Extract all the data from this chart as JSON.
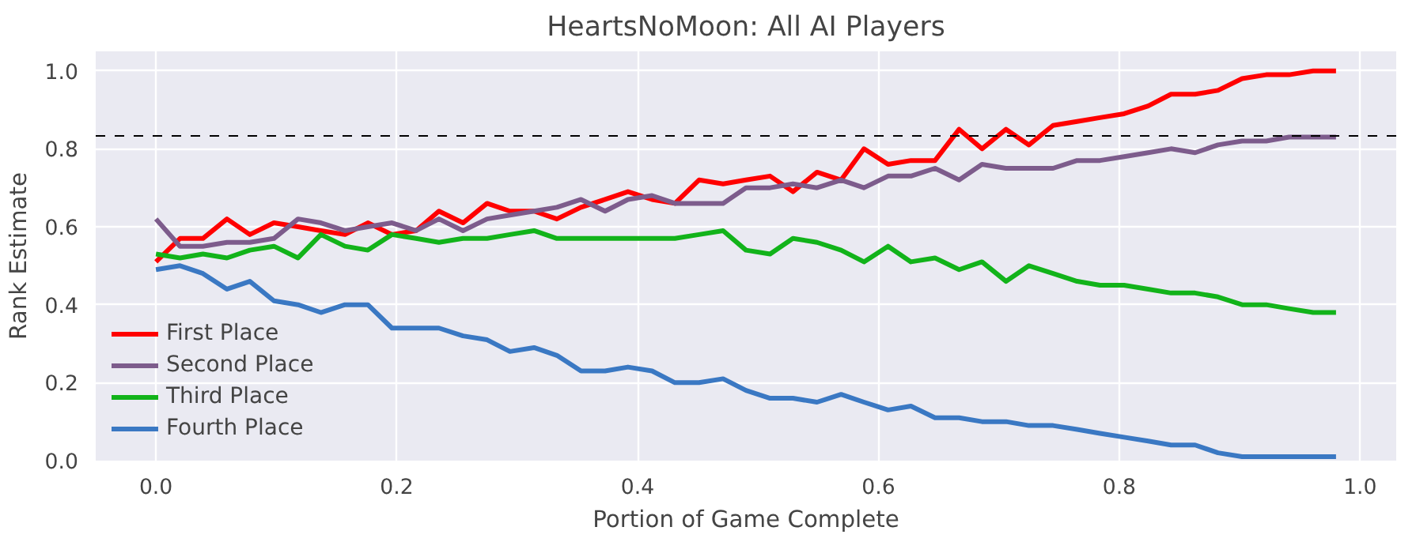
{
  "chart_data": {
    "type": "line",
    "title": "HeartsNoMoon: All AI Players",
    "xlabel": "Portion of Game Complete",
    "ylabel": "Rank Estimate",
    "x": [
      0.0,
      0.02,
      0.039,
      0.059,
      0.078,
      0.098,
      0.118,
      0.137,
      0.157,
      0.176,
      0.196,
      0.216,
      0.235,
      0.255,
      0.275,
      0.294,
      0.314,
      0.333,
      0.353,
      0.373,
      0.392,
      0.412,
      0.431,
      0.451,
      0.471,
      0.49,
      0.51,
      0.529,
      0.549,
      0.569,
      0.588,
      0.608,
      0.627,
      0.647,
      0.667,
      0.686,
      0.706,
      0.725,
      0.745,
      0.765,
      0.784,
      0.804,
      0.824,
      0.843,
      0.863,
      0.882,
      0.902,
      0.922,
      0.941,
      0.961,
      0.98
    ],
    "series": [
      {
        "name": "First Place",
        "color": "#ff0000",
        "values": [
          0.51,
          0.57,
          0.57,
          0.62,
          0.58,
          0.61,
          0.6,
          0.59,
          0.58,
          0.61,
          0.58,
          0.59,
          0.64,
          0.61,
          0.66,
          0.64,
          0.64,
          0.62,
          0.65,
          0.67,
          0.69,
          0.67,
          0.66,
          0.72,
          0.71,
          0.72,
          0.73,
          0.69,
          0.74,
          0.72,
          0.8,
          0.76,
          0.77,
          0.77,
          0.85,
          0.8,
          0.85,
          0.81,
          0.86,
          0.87,
          0.88,
          0.89,
          0.91,
          0.94,
          0.94,
          0.95,
          0.98,
          0.99,
          0.99,
          1.0,
          1.0
        ]
      },
      {
        "name": "Second Place",
        "color": "#7d5c8c",
        "values": [
          0.62,
          0.55,
          0.55,
          0.56,
          0.56,
          0.57,
          0.62,
          0.61,
          0.59,
          0.6,
          0.61,
          0.59,
          0.62,
          0.59,
          0.62,
          0.63,
          0.64,
          0.65,
          0.67,
          0.64,
          0.67,
          0.68,
          0.66,
          0.66,
          0.66,
          0.7,
          0.7,
          0.71,
          0.7,
          0.72,
          0.7,
          0.73,
          0.73,
          0.75,
          0.72,
          0.76,
          0.75,
          0.75,
          0.75,
          0.77,
          0.77,
          0.78,
          0.79,
          0.8,
          0.79,
          0.81,
          0.82,
          0.82,
          0.83,
          0.83,
          0.83
        ]
      },
      {
        "name": "Third Place",
        "color": "#12b31a",
        "values": [
          0.53,
          0.52,
          0.53,
          0.52,
          0.54,
          0.55,
          0.52,
          0.58,
          0.55,
          0.54,
          0.58,
          0.57,
          0.56,
          0.57,
          0.57,
          0.58,
          0.59,
          0.57,
          0.57,
          0.57,
          0.57,
          0.57,
          0.57,
          0.58,
          0.59,
          0.54,
          0.53,
          0.57,
          0.56,
          0.54,
          0.51,
          0.55,
          0.51,
          0.52,
          0.49,
          0.51,
          0.46,
          0.5,
          0.48,
          0.46,
          0.45,
          0.45,
          0.44,
          0.43,
          0.43,
          0.42,
          0.4,
          0.4,
          0.39,
          0.38,
          0.38
        ]
      },
      {
        "name": "Fourth Place",
        "color": "#3a78c3",
        "values": [
          0.49,
          0.5,
          0.48,
          0.44,
          0.46,
          0.41,
          0.4,
          0.38,
          0.4,
          0.4,
          0.34,
          0.34,
          0.34,
          0.32,
          0.31,
          0.28,
          0.29,
          0.27,
          0.23,
          0.23,
          0.24,
          0.23,
          0.2,
          0.2,
          0.21,
          0.18,
          0.16,
          0.16,
          0.15,
          0.17,
          0.15,
          0.13,
          0.14,
          0.11,
          0.11,
          0.1,
          0.1,
          0.09,
          0.09,
          0.08,
          0.07,
          0.06,
          0.05,
          0.04,
          0.04,
          0.02,
          0.01,
          0.01,
          0.01,
          0.01,
          0.01
        ]
      }
    ],
    "ref_lines": [
      {
        "axis": "y",
        "value": 0.833,
        "color": "#000000",
        "line_style": "dashed"
      }
    ],
    "xlim": [
      -0.05,
      1.03
    ],
    "ylim": [
      0,
      1.05
    ],
    "xticks": [
      {
        "value": 0,
        "label": "0.0"
      },
      0.2,
      0.4,
      0.6,
      0.8,
      {
        "value": 1,
        "label": "1.0"
      }
    ],
    "yticks": [
      {
        "value": 0,
        "label": "0.0"
      },
      0.2,
      0.4,
      0.6,
      0.8,
      {
        "value": 1,
        "label": "1.0"
      }
    ],
    "grid": true,
    "legend": "bottom left",
    "line_style": "solid",
    "marker": "none"
  }
}
